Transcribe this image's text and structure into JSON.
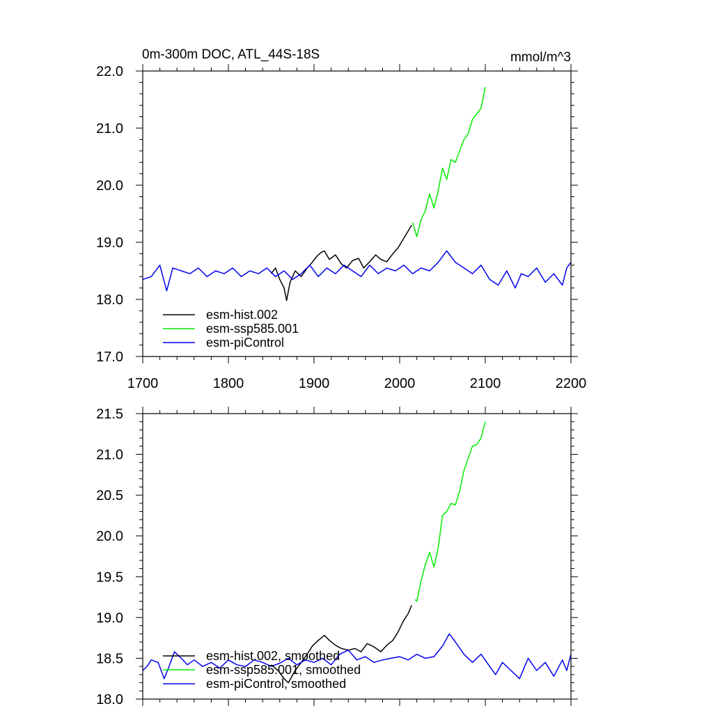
{
  "chart_data": [
    {
      "type": "line",
      "title": "0m-300m DOC, ATL_44S-18S",
      "units": "mmol/m^3",
      "xlim": [
        1700,
        2200
      ],
      "ylim": [
        17.0,
        22.0
      ],
      "xticks": [
        1700,
        1800,
        1900,
        2000,
        2100,
        2200
      ],
      "xtick_labels": [
        "1700",
        "1800",
        "1900",
        "2000",
        "2100",
        "2200"
      ],
      "yticks": [
        17.0,
        18.0,
        19.0,
        20.0,
        21.0,
        22.0
      ],
      "ytick_labels": [
        "17.0",
        "18.0",
        "19.0",
        "20.0",
        "21.0",
        "22.0"
      ],
      "legend_position": "bottom-left",
      "series": [
        {
          "name": "esm-hist.002",
          "color": "#000000",
          "x": [
            1850,
            1855,
            1860,
            1865,
            1868,
            1872,
            1878,
            1885,
            1892,
            1898,
            1903,
            1908,
            1912,
            1918,
            1925,
            1932,
            1938,
            1945,
            1952,
            1958,
            1965,
            1972,
            1978,
            1985,
            1992,
            1998,
            2004,
            2010,
            2014
          ],
          "values": [
            18.45,
            18.55,
            18.35,
            18.2,
            17.98,
            18.3,
            18.5,
            18.4,
            18.55,
            18.65,
            18.75,
            18.82,
            18.85,
            18.7,
            18.78,
            18.62,
            18.55,
            18.68,
            18.72,
            18.55,
            18.66,
            18.78,
            18.7,
            18.66,
            18.8,
            18.9,
            19.05,
            19.2,
            19.3
          ]
        },
        {
          "name": "esm-ssp585.001",
          "color": "#00ee00",
          "x": [
            2015,
            2020,
            2025,
            2030,
            2035,
            2040,
            2045,
            2050,
            2055,
            2060,
            2065,
            2070,
            2075,
            2080,
            2085,
            2090,
            2095,
            2100
          ],
          "values": [
            19.35,
            19.1,
            19.4,
            19.55,
            19.85,
            19.6,
            19.9,
            20.3,
            20.1,
            20.45,
            20.4,
            20.6,
            20.8,
            20.9,
            21.15,
            21.25,
            21.35,
            21.72
          ]
        },
        {
          "name": "esm-piControl",
          "color": "#0000ee",
          "x": [
            1700,
            1710,
            1720,
            1728,
            1735,
            1745,
            1755,
            1765,
            1775,
            1785,
            1795,
            1805,
            1815,
            1825,
            1835,
            1845,
            1855,
            1865,
            1875,
            1885,
            1895,
            1905,
            1915,
            1925,
            1935,
            1945,
            1955,
            1965,
            1975,
            1985,
            1995,
            2005,
            2015,
            2025,
            2035,
            2045,
            2055,
            2060,
            2065,
            2075,
            2085,
            2095,
            2105,
            2115,
            2125,
            2135,
            2142,
            2150,
            2160,
            2170,
            2180,
            2190,
            2195,
            2200
          ],
          "values": [
            18.35,
            18.4,
            18.6,
            18.15,
            18.55,
            18.5,
            18.45,
            18.55,
            18.4,
            18.5,
            18.45,
            18.55,
            18.4,
            18.5,
            18.45,
            18.55,
            18.4,
            18.5,
            18.35,
            18.45,
            18.6,
            18.4,
            18.55,
            18.45,
            18.6,
            18.5,
            18.4,
            18.6,
            18.45,
            18.55,
            18.5,
            18.6,
            18.45,
            18.55,
            18.5,
            18.65,
            18.85,
            18.75,
            18.65,
            18.55,
            18.45,
            18.6,
            18.35,
            18.25,
            18.5,
            18.2,
            18.45,
            18.4,
            18.55,
            18.3,
            18.45,
            18.25,
            18.55,
            18.65
          ]
        }
      ]
    },
    {
      "type": "line",
      "title": "",
      "xlim": [
        1700,
        2200
      ],
      "ylim": [
        18.0,
        21.5
      ],
      "xticks": [
        1700,
        1800,
        1900,
        2000,
        2100,
        2200
      ],
      "yticks": [
        18.0,
        18.5,
        19.0,
        19.5,
        20.0,
        20.5,
        21.0,
        21.5
      ],
      "ytick_labels": [
        "18.0",
        "18.5",
        "19.0",
        "19.5",
        "20.0",
        "20.5",
        "21.0",
        "21.5"
      ],
      "legend_position": "bottom-left",
      "series": [
        {
          "name": "esm-hist.002, smoothed",
          "color": "#000000",
          "x": [
            1850,
            1858,
            1865,
            1870,
            1878,
            1885,
            1892,
            1898,
            1905,
            1912,
            1918,
            1925,
            1932,
            1940,
            1948,
            1955,
            1962,
            1970,
            1978,
            1985,
            1992,
            1998,
            2004,
            2010,
            2014
          ],
          "values": [
            18.42,
            18.35,
            18.25,
            18.2,
            18.35,
            18.45,
            18.55,
            18.65,
            18.72,
            18.78,
            18.72,
            18.66,
            18.62,
            18.6,
            18.62,
            18.58,
            18.68,
            18.64,
            18.58,
            18.66,
            18.72,
            18.82,
            18.95,
            19.05,
            19.15
          ]
        },
        {
          "name": "esm-ssp585.001, smoothed",
          "color": "#00ee00",
          "x": [
            2018,
            2020,
            2025,
            2030,
            2035,
            2040,
            2045,
            2050,
            2055,
            2060,
            2065,
            2070,
            2075,
            2080,
            2085,
            2090,
            2095,
            2100
          ],
          "values": [
            19.22,
            19.2,
            19.45,
            19.65,
            19.8,
            19.62,
            19.85,
            20.25,
            20.3,
            20.4,
            20.38,
            20.55,
            20.8,
            20.95,
            21.1,
            21.12,
            21.2,
            21.4
          ]
        },
        {
          "name": "esm-piControl, smoothed",
          "color": "#0000ee",
          "x": [
            1700,
            1705,
            1710,
            1718,
            1725,
            1730,
            1737,
            1745,
            1752,
            1760,
            1770,
            1780,
            1790,
            1800,
            1810,
            1820,
            1830,
            1840,
            1850,
            1860,
            1870,
            1880,
            1890,
            1900,
            1910,
            1920,
            1930,
            1940,
            1950,
            1960,
            1970,
            1980,
            1990,
            2000,
            2010,
            2020,
            2030,
            2040,
            2050,
            2058,
            2065,
            2075,
            2085,
            2095,
            2105,
            2112,
            2120,
            2130,
            2140,
            2150,
            2160,
            2170,
            2180,
            2190,
            2195,
            2200
          ],
          "values": [
            18.35,
            18.4,
            18.48,
            18.45,
            18.25,
            18.38,
            18.58,
            18.5,
            18.42,
            18.48,
            18.4,
            18.45,
            18.38,
            18.48,
            18.42,
            18.4,
            18.48,
            18.45,
            18.4,
            18.44,
            18.5,
            18.42,
            18.48,
            18.45,
            18.5,
            18.42,
            18.55,
            18.6,
            18.48,
            18.52,
            18.45,
            18.48,
            18.5,
            18.52,
            18.48,
            18.55,
            18.5,
            18.52,
            18.65,
            18.8,
            18.7,
            18.55,
            18.45,
            18.55,
            18.4,
            18.3,
            18.45,
            18.35,
            18.25,
            18.5,
            18.35,
            18.45,
            18.28,
            18.48,
            18.35,
            18.55
          ]
        }
      ]
    }
  ]
}
